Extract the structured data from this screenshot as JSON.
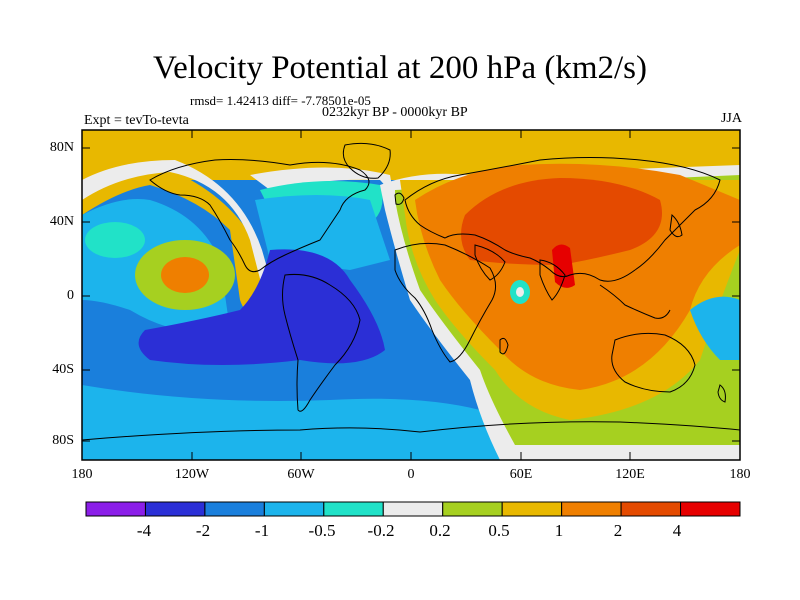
{
  "title": "Velocity Potential at 200 hPa (km2/s)",
  "stats_text": "rmsd= 1.42413 diff= -7.78501e-05",
  "left_label": "Expt = tevTo-tevta",
  "center_label": "0232kyr BP - 0000kyr BP",
  "right_label": "JJA",
  "lat_ticks": [
    "80N",
    "40N",
    "0",
    "40S",
    "80S"
  ],
  "lon_ticks": [
    "180",
    "120W",
    "60W",
    "0",
    "60E",
    "120E",
    "180"
  ],
  "colorbar": {
    "labels": [
      "-4",
      "-2",
      "-1",
      "-0.5",
      "-0.2",
      "0.2",
      "0.5",
      "1",
      "2",
      "4"
    ],
    "colors": [
      "#8b1ee8",
      "#2b2fd6",
      "#1a7fdc",
      "#1cb4ec",
      "#21e2c8",
      "#ececec",
      "#a6d020",
      "#e8b800",
      "#ef7f00",
      "#e44a00",
      "#e60000"
    ]
  },
  "map_colors": {
    "ocean_base": "#1a7fdc",
    "pos_base": "#ef7f00",
    "coast": "#000000"
  }
}
